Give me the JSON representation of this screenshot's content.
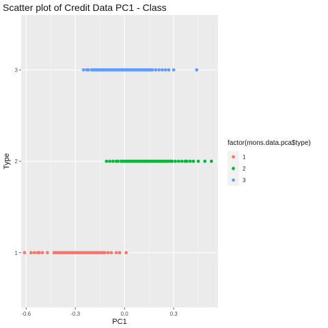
{
  "chart_data": {
    "type": "scatter",
    "title": "Scatter plot of Credit Data PC1 - Class",
    "xlabel": "PC1",
    "ylabel": "Type",
    "xlim": [
      -0.63,
      0.57
    ],
    "ylim": [
      0.4,
      3.6
    ],
    "x_ticks": [
      -0.6,
      -0.3,
      0.0,
      0.3
    ],
    "x_tick_labels": [
      "-0.6",
      "-0.3",
      "0.0",
      "0.3"
    ],
    "y_ticks": [
      1,
      2,
      3
    ],
    "y_tick_labels": [
      "1",
      "2",
      "3"
    ],
    "grid": true,
    "legend_position": "right",
    "legend_title": "factor(mons.data.pca$type)",
    "series": [
      {
        "name": "1",
        "color": "#F8766D",
        "y": 1,
        "x": [
          -0.61,
          -0.57,
          -0.55,
          -0.53,
          -0.52,
          -0.5,
          -0.47,
          -0.43,
          -0.42,
          -0.41,
          -0.4,
          -0.39,
          -0.38,
          -0.37,
          -0.36,
          -0.35,
          -0.34,
          -0.33,
          -0.32,
          -0.31,
          -0.3,
          -0.29,
          -0.28,
          -0.27,
          -0.26,
          -0.25,
          -0.24,
          -0.23,
          -0.22,
          -0.21,
          -0.2,
          -0.19,
          -0.18,
          -0.17,
          -0.16,
          -0.15,
          -0.14,
          -0.13,
          -0.12,
          -0.1,
          -0.08,
          -0.05,
          -0.03,
          0.01
        ]
      },
      {
        "name": "2",
        "color": "#00BA38",
        "y": 2,
        "x": [
          -0.11,
          -0.09,
          -0.07,
          -0.05,
          -0.04,
          -0.02,
          -0.01,
          0.0,
          0.01,
          0.02,
          0.03,
          0.04,
          0.05,
          0.06,
          0.07,
          0.08,
          0.09,
          0.1,
          0.11,
          0.12,
          0.13,
          0.14,
          0.15,
          0.16,
          0.17,
          0.18,
          0.19,
          0.2,
          0.21,
          0.22,
          0.23,
          0.24,
          0.25,
          0.26,
          0.27,
          0.28,
          0.29,
          0.31,
          0.33,
          0.35,
          0.37,
          0.38,
          0.4,
          0.42,
          0.45,
          0.49,
          0.53
        ]
      },
      {
        "name": "3",
        "color": "#619CFF",
        "y": 3,
        "x": [
          -0.25,
          -0.23,
          -0.22,
          -0.2,
          -0.19,
          -0.18,
          -0.17,
          -0.16,
          -0.15,
          -0.14,
          -0.13,
          -0.12,
          -0.11,
          -0.1,
          -0.09,
          -0.08,
          -0.07,
          -0.06,
          -0.05,
          -0.04,
          -0.03,
          -0.02,
          -0.01,
          0.0,
          0.01,
          0.02,
          0.03,
          0.04,
          0.05,
          0.06,
          0.07,
          0.08,
          0.09,
          0.1,
          0.11,
          0.12,
          0.13,
          0.14,
          0.15,
          0.16,
          0.17,
          0.19,
          0.21,
          0.23,
          0.25,
          0.27,
          0.3,
          0.44
        ]
      }
    ]
  }
}
